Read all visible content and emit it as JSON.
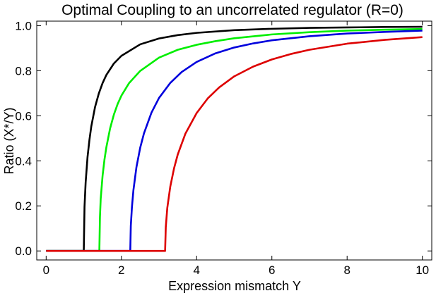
{
  "chart_data": {
    "type": "line",
    "title": "Optimal Coupling to an uncorrelated regulator (R=0)",
    "xlabel": "Expression mismatch Y",
    "ylabel": "Ratio (X*/Y)",
    "xlim": [
      -0.25,
      10.25
    ],
    "ylim": [
      -0.04,
      1.02
    ],
    "x_ticks": [
      0,
      2,
      4,
      6,
      8,
      10
    ],
    "x_tick_labels": [
      "0",
      "2",
      "4",
      "6",
      "8",
      "10"
    ],
    "y_ticks": [
      0.0,
      0.2,
      0.4,
      0.6,
      0.8,
      1.0
    ],
    "y_tick_labels": [
      "0.0",
      "0.2",
      "0.4",
      "0.6",
      "0.8",
      "1.0"
    ],
    "grid": false,
    "series": [
      {
        "color": "#000000",
        "x": [
          0,
          1.0,
          1.02,
          1.05,
          1.1,
          1.15,
          1.2,
          1.3,
          1.4,
          1.5,
          1.6,
          1.8,
          2.0,
          2.5,
          3.0,
          3.5,
          4.0,
          5.0,
          6.0,
          7.0,
          8.0,
          9.0,
          10.0
        ],
        "y": [
          0,
          0,
          0.196,
          0.305,
          0.417,
          0.492,
          0.553,
          0.639,
          0.699,
          0.745,
          0.781,
          0.832,
          0.866,
          0.917,
          0.943,
          0.958,
          0.968,
          0.98,
          0.986,
          0.99,
          0.992,
          0.994,
          0.995
        ]
      },
      {
        "color": "#00ee00",
        "x": [
          0,
          1.414,
          1.43,
          1.45,
          1.5,
          1.55,
          1.6,
          1.7,
          1.8,
          1.9,
          2.0,
          2.2,
          2.5,
          3.0,
          3.5,
          4.0,
          4.5,
          5.0,
          6.0,
          7.0,
          8.0,
          9.0,
          10.0
        ],
        "y": [
          0,
          0,
          0.15,
          0.231,
          0.334,
          0.405,
          0.46,
          0.544,
          0.605,
          0.652,
          0.689,
          0.744,
          0.799,
          0.858,
          0.893,
          0.915,
          0.931,
          0.944,
          0.961,
          0.971,
          0.978,
          0.982,
          0.985
        ]
      },
      {
        "color": "#0000dd",
        "x": [
          0,
          2.236,
          2.25,
          2.28,
          2.32,
          2.4,
          2.5,
          2.6,
          2.8,
          3.0,
          3.3,
          3.6,
          4.0,
          4.5,
          5.0,
          5.5,
          6.0,
          7.0,
          8.0,
          9.0,
          10.0
        ],
        "y": [
          0,
          0,
          0.111,
          0.194,
          0.27,
          0.372,
          0.458,
          0.522,
          0.614,
          0.679,
          0.746,
          0.794,
          0.839,
          0.877,
          0.903,
          0.921,
          0.935,
          0.953,
          0.965,
          0.972,
          0.978
        ]
      },
      {
        "color": "#dd0000",
        "x": [
          0,
          3.162,
          3.18,
          3.22,
          3.3,
          3.4,
          3.5,
          3.7,
          4.0,
          4.3,
          4.6,
          5.0,
          5.5,
          6.0,
          6.5,
          7.0,
          8.0,
          9.0,
          10.0
        ],
        "y": [
          0,
          0,
          0.106,
          0.191,
          0.286,
          0.367,
          0.429,
          0.52,
          0.612,
          0.678,
          0.726,
          0.775,
          0.818,
          0.85,
          0.874,
          0.893,
          0.92,
          0.937,
          0.949
        ]
      }
    ]
  }
}
